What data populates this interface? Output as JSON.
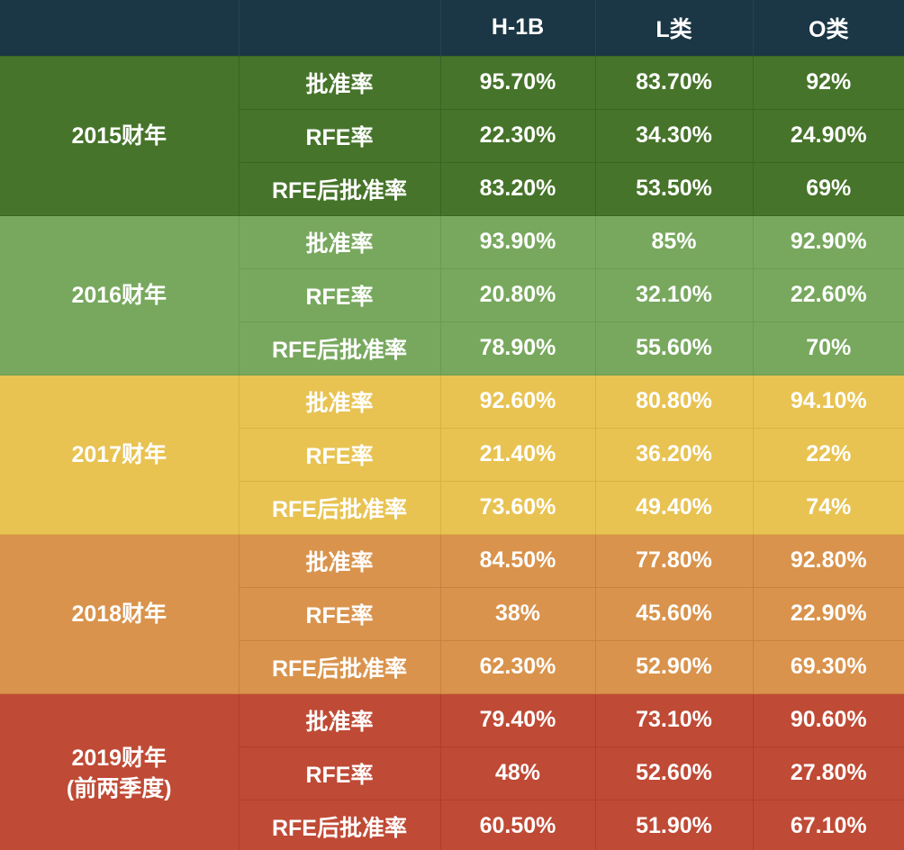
{
  "table": {
    "columns": [
      "",
      "",
      "H-1B",
      "L类",
      "O类"
    ],
    "groups": [
      {
        "year": "2015财年",
        "year_sub": "",
        "colors": {
          "bg": "#46742a"
        },
        "rows": [
          {
            "metric": "批准率",
            "h1b": "95.70%",
            "l": "83.70%",
            "o": "92%"
          },
          {
            "metric": "RFE率",
            "h1b": "22.30%",
            "l": "34.30%",
            "o": "24.90%"
          },
          {
            "metric": "RFE后批准率",
            "h1b": "83.20%",
            "l": "53.50%",
            "o": "69%"
          }
        ]
      },
      {
        "year": "2016财年",
        "year_sub": "",
        "colors": {
          "bg": "#78a85e"
        },
        "rows": [
          {
            "metric": "批准率",
            "h1b": "93.90%",
            "l": "85%",
            "o": "92.90%"
          },
          {
            "metric": "RFE率",
            "h1b": "20.80%",
            "l": "32.10%",
            "o": "22.60%"
          },
          {
            "metric": "RFE后批准率",
            "h1b": "78.90%",
            "l": "55.60%",
            "o": "70%"
          }
        ]
      },
      {
        "year": "2017财年",
        "year_sub": "",
        "colors": {
          "bg": "#e8c352"
        },
        "rows": [
          {
            "metric": "批准率",
            "h1b": "92.60%",
            "l": "80.80%",
            "o": "94.10%"
          },
          {
            "metric": "RFE率",
            "h1b": "21.40%",
            "l": "36.20%",
            "o": "22%"
          },
          {
            "metric": "RFE后批准率",
            "h1b": "73.60%",
            "l": "49.40%",
            "o": "74%"
          }
        ]
      },
      {
        "year": "2018财年",
        "year_sub": "",
        "colors": {
          "bg": "#d9934c"
        },
        "rows": [
          {
            "metric": "批准率",
            "h1b": "84.50%",
            "l": "77.80%",
            "o": "92.80%"
          },
          {
            "metric": "RFE率",
            "h1b": "38%",
            "l": "45.60%",
            "o": "22.90%"
          },
          {
            "metric": "RFE后批准率",
            "h1b": "62.30%",
            "l": "52.90%",
            "o": "69.30%"
          }
        ]
      },
      {
        "year": "2019财年",
        "year_sub": "(前两季度)",
        "colors": {
          "bg": "#bf4a35"
        },
        "rows": [
          {
            "metric": "批准率",
            "h1b": "79.40%",
            "l": "73.10%",
            "o": "90.60%"
          },
          {
            "metric": "RFE率",
            "h1b": "48%",
            "l": "52.60%",
            "o": "27.80%"
          },
          {
            "metric": "RFE后批准率",
            "h1b": "60.50%",
            "l": "51.90%",
            "o": "67.10%"
          }
        ]
      }
    ]
  }
}
